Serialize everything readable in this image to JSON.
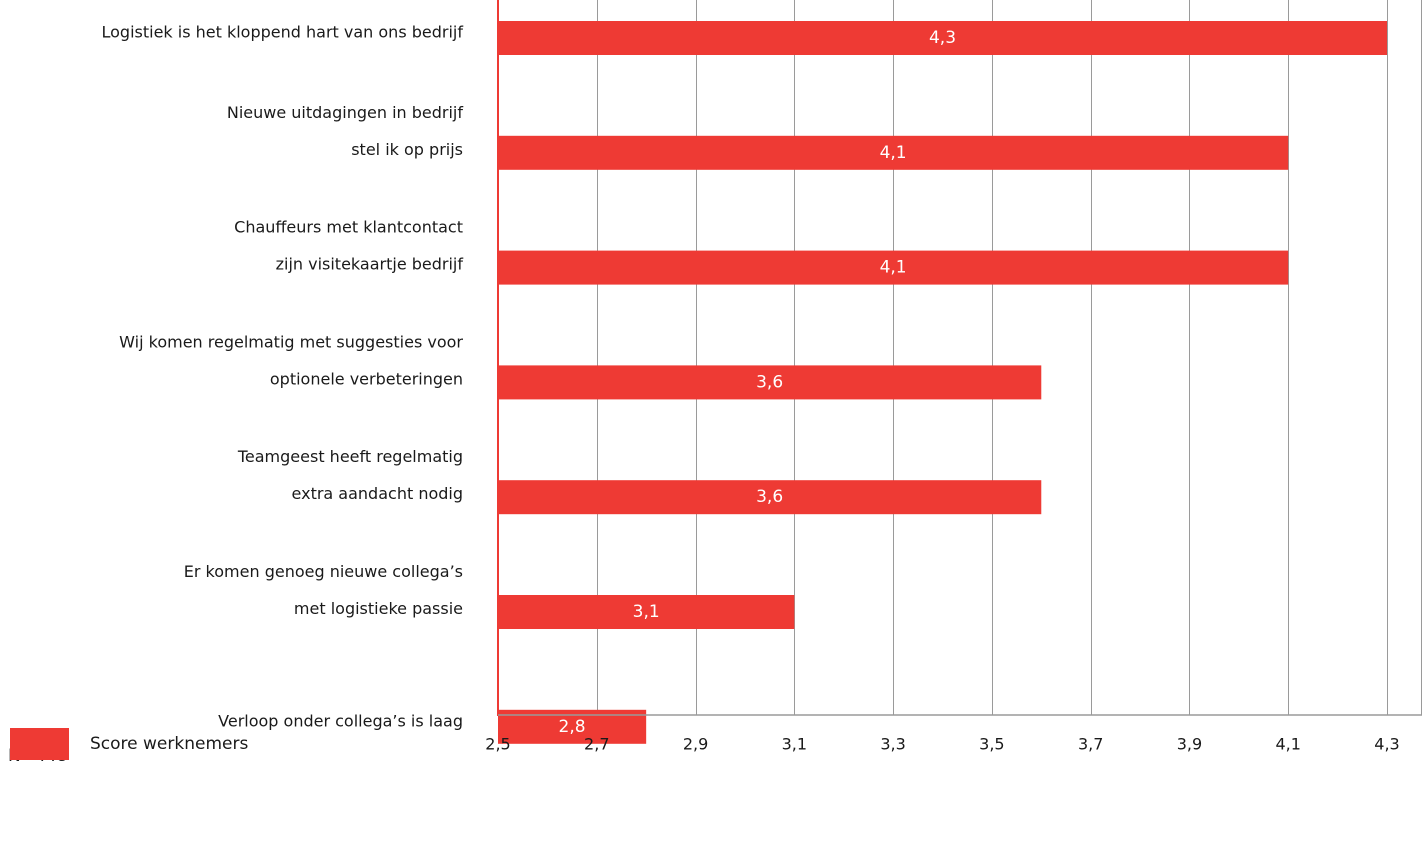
{
  "note": "N=448",
  "legend": {
    "label": "Score werknemers",
    "color": "#ee3a34"
  },
  "colors": {
    "bar": "#ee3a34",
    "bar_label": "#ffffff",
    "grid": "#9a9a9a",
    "axis": "#ee3a34"
  },
  "chart_data": {
    "type": "bar",
    "orientation": "horizontal",
    "categories": [
      [
        "Logistiek is het kloppend hart van ons bedrijf"
      ],
      [
        "Nieuwe uitdagingen in bedrijf",
        "stel ik op prijs"
      ],
      [
        "Chauffeurs met klantcontact",
        "zijn visitekaartje bedrijf"
      ],
      [
        "Wij komen regelmatig met suggesties voor",
        "optionele verbeteringen"
      ],
      [
        "Teamgeest heeft regelmatig",
        "extra aandacht nodig"
      ],
      [
        "Er komen genoeg nieuwe collega’s",
        "met logistieke passie"
      ],
      [
        "Verloop onder collega’s is laag"
      ]
    ],
    "values": [
      4.3,
      4.1,
      4.1,
      3.6,
      3.6,
      3.1,
      2.8
    ],
    "value_labels": [
      "4,3",
      "4,1",
      "4,1",
      "3,6",
      "3,6",
      "3,1",
      "2,8"
    ],
    "series": [
      {
        "name": "Score werknemers",
        "values": [
          4.3,
          4.1,
          4.1,
          3.6,
          3.6,
          3.1,
          2.8
        ]
      }
    ],
    "xlim": [
      2.5,
      4.3
    ],
    "ticks": [
      2.5,
      2.7,
      2.9,
      3.1,
      3.3,
      3.5,
      3.7,
      3.9,
      4.1,
      4.3
    ],
    "tick_labels": [
      "2,5",
      "2,7",
      "2,9",
      "3,1",
      "3,3",
      "3,5",
      "3,7",
      "3,9",
      "4,1",
      "4,3"
    ],
    "grid": true,
    "legend_position": "bottom-left",
    "title": "",
    "xlabel": "",
    "ylabel": ""
  }
}
